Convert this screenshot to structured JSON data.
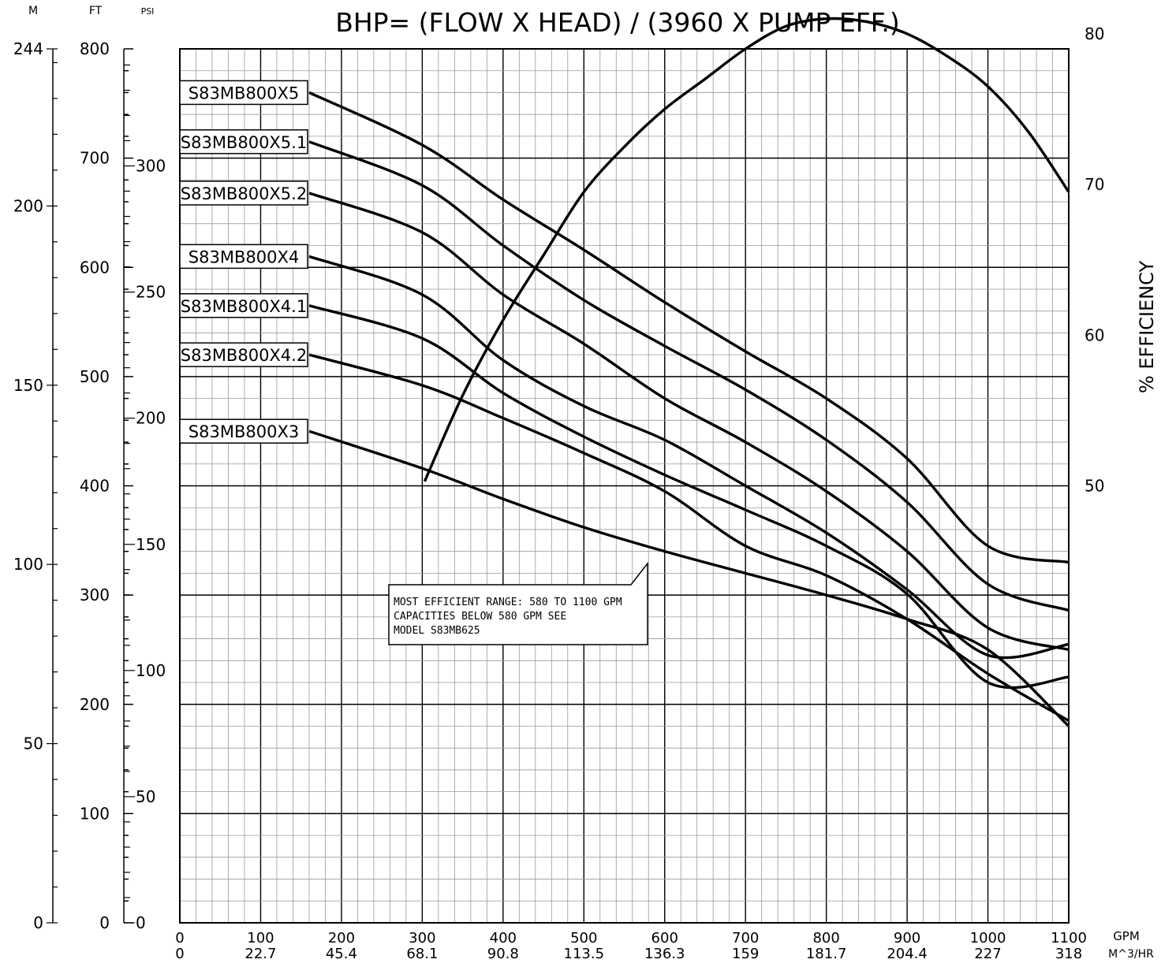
{
  "chart_data": {
    "type": "line",
    "title": "BHP= (FLOW X HEAD) / (3960 X PUMP EFF.)",
    "axes": {
      "meters": {
        "unit": "M",
        "ticks": [
          "244",
          "200",
          "150",
          "100",
          "50",
          "0"
        ]
      },
      "feet": {
        "unit": "FT",
        "ticks": [
          "800",
          "700",
          "600",
          "500",
          "400",
          "300",
          "200",
          "100",
          "0"
        ],
        "range": [
          0,
          800
        ]
      },
      "psi": {
        "unit": "PSI",
        "ticks": [
          "300",
          "250",
          "200",
          "150",
          "100",
          "50",
          "0"
        ]
      },
      "x_gpm": {
        "unit": "GPM",
        "ticks": [
          "0",
          "100",
          "200",
          "300",
          "400",
          "500",
          "600",
          "700",
          "800",
          "900",
          "1000",
          "1100"
        ],
        "range": [
          0,
          1100
        ]
      },
      "x_m3hr": {
        "unit": "M^3/HR",
        "ticks": [
          "0",
          "22.7",
          "45.4",
          "68.1",
          "90.8",
          "113.5",
          "136.3",
          "159",
          "181.7",
          "204.4",
          "227",
          "318"
        ]
      },
      "efficiency": {
        "label": "% EFFICIENCY",
        "ticks": [
          "80",
          "70",
          "60",
          "50"
        ]
      }
    },
    "series": [
      {
        "name": "S83MB800X5",
        "x": [
          160,
          300,
          400,
          500,
          600,
          700,
          800,
          900,
          1000,
          1100
        ],
        "y": [
          760,
          712,
          662,
          616,
          568,
          523,
          480,
          425,
          345,
          330
        ]
      },
      {
        "name": "S83MB800X5.1",
        "x": [
          160,
          300,
          400,
          500,
          600,
          700,
          800,
          900,
          1000,
          1100
        ],
        "y": [
          715,
          675,
          620,
          570,
          528,
          488,
          442,
          385,
          310,
          286
        ]
      },
      {
        "name": "S83MB800X5.2",
        "x": [
          160,
          300,
          400,
          500,
          600,
          700,
          800,
          900,
          1000,
          1100
        ],
        "y": [
          668,
          632,
          575,
          530,
          480,
          440,
          395,
          340,
          270,
          250
        ]
      },
      {
        "name": "S83MB800X4",
        "x": [
          160,
          300,
          400,
          500,
          600,
          700,
          800,
          900,
          1000,
          1100
        ],
        "y": [
          610,
          575,
          515,
          473,
          442,
          400,
          357,
          305,
          245,
          255
        ]
      },
      {
        "name": "S83MB800X4.1",
        "x": [
          160,
          300,
          400,
          500,
          600,
          700,
          800,
          900,
          1000,
          1100
        ],
        "y": [
          565,
          535,
          485,
          445,
          410,
          378,
          345,
          301,
          220,
          225
        ]
      },
      {
        "name": "S83MB800X4.2",
        "x": [
          160,
          300,
          400,
          500,
          600,
          700,
          800,
          900,
          1000,
          1100
        ],
        "y": [
          520,
          492,
          462,
          430,
          395,
          345,
          318,
          278,
          228,
          185
        ]
      },
      {
        "name": "S83MB800X3",
        "x": [
          160,
          300,
          400,
          500,
          600,
          700,
          800,
          900,
          1000,
          1100
        ],
        "y": [
          450,
          416,
          388,
          362,
          340,
          320,
          300,
          278,
          250,
          180
        ]
      }
    ],
    "efficiency_curve": {
      "x": [
        303,
        350,
        400,
        450,
        500,
        550,
        600,
        650,
        700,
        750,
        800,
        850,
        900,
        950,
        1000,
        1050,
        1100
      ],
      "y": [
        50.3,
        56.0,
        61.0,
        65.3,
        69.5,
        72.5,
        75.0,
        77.0,
        79.0,
        80.5,
        81.0,
        80.8,
        80.0,
        78.5,
        76.5,
        73.5,
        69.5
      ]
    },
    "efficiency_range": [
      40,
      88
    ],
    "grid": true,
    "annotation": {
      "line1": "MOST EFFICIENT RANGE: 580 TO 1100 GPM",
      "line2": "CAPACITIES BELOW 580 GPM SEE",
      "line3": "MODEL S83MB625"
    }
  }
}
